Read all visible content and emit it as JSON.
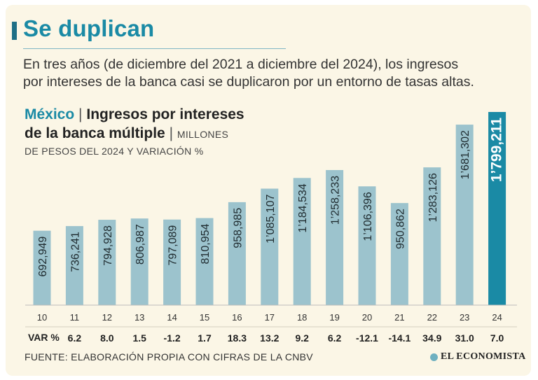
{
  "header": {
    "headline": "Se duplican",
    "intro_line1": "En tres años (de diciembre del 2021 a diciembre del 2024), los ingresos",
    "intro_line2": "por intereses de la banca casi se duplicaron por un entorno de tasas altas."
  },
  "chart_title": {
    "country": "México",
    "separator": "|",
    "main_line1": "Ingresos por intereses",
    "main_line2": "de la banca múltiple",
    "separator2": "|",
    "units_line1": "MILLONES",
    "units_line2": "DE PESOS DEL 2024 Y VARIACIÓN %"
  },
  "variation_title": "VAR %",
  "footer": {
    "source": "FUENTE: ELABORACIÓN PROPIA CON CIFRAS DE LA CNBV",
    "brand": "EL ECONOMISTA"
  },
  "colors": {
    "bar": "#9cc3cd",
    "bar_highlight": "#1a8aa5",
    "background": "#fbf6e6"
  },
  "chart_data": {
    "type": "bar",
    "title": "Ingresos por intereses de la banca múltiple",
    "ylabel": "MILLONES DE PESOS DEL 2024 Y VARIACIÓN %",
    "categories": [
      "10",
      "11",
      "12",
      "13",
      "14",
      "15",
      "16",
      "17",
      "18",
      "19",
      "20",
      "21",
      "22",
      "23",
      "24"
    ],
    "values": [
      692949,
      736241,
      794928,
      806987,
      797089,
      810954,
      958985,
      1085107,
      1184534,
      1258233,
      1106396,
      950862,
      1283126,
      1681302,
      1799211
    ],
    "value_labels": [
      "692,949",
      "736,241",
      "794,928",
      "806,987",
      "797,089",
      "810,954",
      "958,985",
      "1’085,107",
      "1’184,534",
      "1’258,233",
      "1’106,396",
      "950,862",
      "1’283,126",
      "1’681,302",
      "1’799,211"
    ],
    "variation": [
      "",
      "6.2",
      "8.0",
      "1.5",
      "-1.2",
      "1.7",
      "18.3",
      "13.2",
      "9.2",
      "6.2",
      "-12.1",
      "-14.1",
      "34.9",
      "31.0",
      "7.0"
    ],
    "highlight_index": 14,
    "ylim": [
      0,
      1799211
    ],
    "grid": false
  }
}
